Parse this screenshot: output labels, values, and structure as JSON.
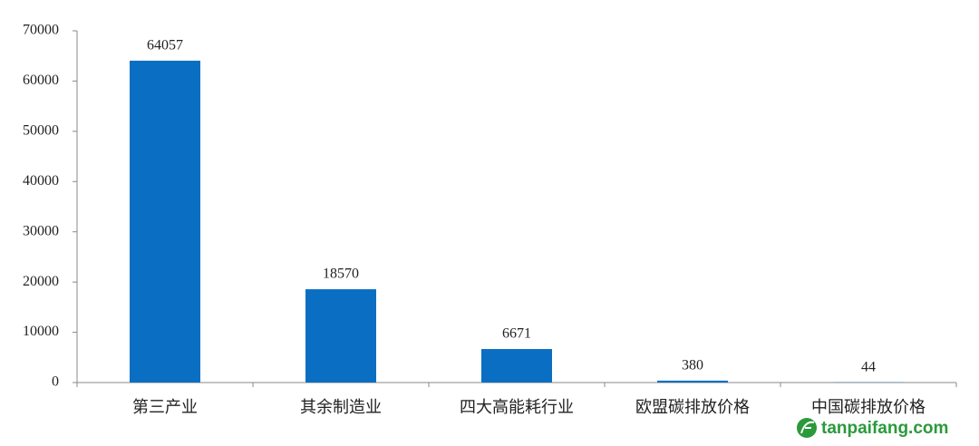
{
  "chart_data": {
    "type": "bar",
    "categories": [
      "第三产业",
      "其余制造业",
      "四大高能耗行业",
      "欧盟碳排放价格",
      "中国碳排放价格"
    ],
    "values": [
      64057,
      18570,
      6671,
      380,
      44
    ],
    "color": "#0a6fc2",
    "ylim": [
      0,
      70000
    ],
    "yticks": [
      0,
      10000,
      20000,
      30000,
      40000,
      50000,
      60000,
      70000
    ],
    "grid": false,
    "watermark": "tanpaifang.com"
  }
}
